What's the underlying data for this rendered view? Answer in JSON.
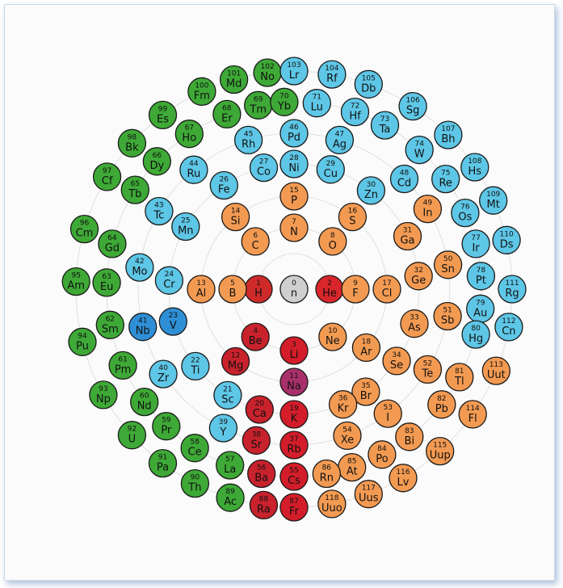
{
  "colors": {
    "neutron": "#cfcfcf",
    "hydrogen": "#cf2a2a",
    "noble_center": "#d8262a",
    "alkali": "#d31d2a",
    "alkaline": "#c8222c",
    "nonmetal_p": "#f39a52",
    "transition": "#5ec6e6",
    "f_block": "#3ea936",
    "sodium": "#a8306a",
    "vanadium_niobium": "#2f8fd6"
  },
  "elements": [
    {
      "num": "0",
      "sym": "n",
      "cat": "neutron",
      "ang": -90,
      "r": 0
    },
    {
      "num": "1",
      "sym": "H",
      "cat": "hydrogen",
      "ang": 180,
      "r": 44
    },
    {
      "num": "2",
      "sym": "He",
      "cat": "noble_center",
      "ang": 0,
      "r": 44
    },
    {
      "num": "3",
      "sym": "Li",
      "cat": "alkali",
      "ang": 90,
      "r": 76
    },
    {
      "num": "4",
      "sym": "Be",
      "cat": "alkaline",
      "ang": 129,
      "r": 76
    },
    {
      "num": "5",
      "sym": "B",
      "cat": "nonmetal_p",
      "ang": 180,
      "r": 76
    },
    {
      "num": "6",
      "sym": "C",
      "cat": "nonmetal_p",
      "ang": -129,
      "r": 76
    },
    {
      "num": "7",
      "sym": "N",
      "cat": "nonmetal_p",
      "ang": -90,
      "r": 76
    },
    {
      "num": "8",
      "sym": "O",
      "cat": "nonmetal_p",
      "ang": -51,
      "r": 76
    },
    {
      "num": "9",
      "sym": "F",
      "cat": "nonmetal_p",
      "ang": 0,
      "r": 76
    },
    {
      "num": "10",
      "sym": "Ne",
      "cat": "nonmetal_p",
      "ang": 51,
      "r": 76
    },
    {
      "num": "11",
      "sym": "Na",
      "cat": "sodium",
      "ang": 90,
      "r": 115
    },
    {
      "num": "12",
      "sym": "Mg",
      "cat": "alkaline",
      "ang": 129,
      "r": 115
    },
    {
      "num": "13",
      "sym": "Al",
      "cat": "nonmetal_p",
      "ang": 180,
      "r": 115
    },
    {
      "num": "14",
      "sym": "Si",
      "cat": "nonmetal_p",
      "ang": -129,
      "r": 115
    },
    {
      "num": "15",
      "sym": "P",
      "cat": "nonmetal_p",
      "ang": -90,
      "r": 115
    },
    {
      "num": "16",
      "sym": "S",
      "cat": "nonmetal_p",
      "ang": -51,
      "r": 115
    },
    {
      "num": "17",
      "sym": "Cl",
      "cat": "nonmetal_p",
      "ang": 0,
      "r": 115
    },
    {
      "num": "18",
      "sym": "Ar",
      "cat": "nonmetal_p",
      "ang": 39,
      "r": 115
    },
    {
      "num": "19",
      "sym": "K",
      "cat": "alkali",
      "ang": 90,
      "r": 155
    },
    {
      "num": "20",
      "sym": "Ca",
      "cat": "alkaline",
      "ang": 106,
      "r": 155
    },
    {
      "num": "21",
      "sym": "Sc",
      "cat": "transition",
      "ang": 122,
      "r": 155
    },
    {
      "num": "22",
      "sym": "Ti",
      "cat": "transition",
      "ang": 142,
      "r": 155
    },
    {
      "num": "23",
      "sym": "V",
      "cat": "vanadium_niobium",
      "ang": 165,
      "r": 155
    },
    {
      "num": "24",
      "sym": "Cr",
      "cat": "transition",
      "ang": -176,
      "r": 155
    },
    {
      "num": "25",
      "sym": "Mn",
      "cat": "transition",
      "ang": -150,
      "r": 155
    },
    {
      "num": "26",
      "sym": "Fe",
      "cat": "transition",
      "ang": -124,
      "r": 155
    },
    {
      "num": "27",
      "sym": "Co",
      "cat": "transition",
      "ang": -104,
      "r": 155
    },
    {
      "num": "28",
      "sym": "Ni",
      "cat": "transition",
      "ang": -90,
      "r": 155
    },
    {
      "num": "29",
      "sym": "Cu",
      "cat": "transition",
      "ang": -73,
      "r": 155
    },
    {
      "num": "30",
      "sym": "Zn",
      "cat": "transition",
      "ang": -52,
      "r": 155
    },
    {
      "num": "31",
      "sym": "Ga",
      "cat": "nonmetal_p",
      "ang": -25,
      "r": 155
    },
    {
      "num": "32",
      "sym": "Ge",
      "cat": "nonmetal_p",
      "ang": -6,
      "r": 155
    },
    {
      "num": "33",
      "sym": "As",
      "cat": "nonmetal_p",
      "ang": 16,
      "r": 155
    },
    {
      "num": "34",
      "sym": "Se",
      "cat": "nonmetal_p",
      "ang": 35,
      "r": 155
    },
    {
      "num": "35",
      "sym": "Br",
      "cat": "nonmetal_p",
      "ang": 55,
      "r": 155
    },
    {
      "num": "36",
      "sym": "Kr",
      "cat": "nonmetal_p",
      "ang": 67,
      "r": 155
    },
    {
      "num": "37",
      "sym": "Rb",
      "cat": "alkali",
      "ang": 90,
      "r": 193
    },
    {
      "num": "38",
      "sym": "Sr",
      "cat": "alkaline",
      "ang": 104,
      "r": 193
    },
    {
      "num": "39",
      "sym": "Y",
      "cat": "transition",
      "ang": 117,
      "r": 193
    },
    {
      "num": "40",
      "sym": "Zr",
      "cat": "transition",
      "ang": 147,
      "r": 193
    },
    {
      "num": "41",
      "sym": "Nb",
      "cat": "vanadium_niobium",
      "ang": 166,
      "r": 193
    },
    {
      "num": "42",
      "sym": "Mo",
      "cat": "transition",
      "ang": -172,
      "r": 193
    },
    {
      "num": "43",
      "sym": "Tc",
      "cat": "transition",
      "ang": -150,
      "r": 193
    },
    {
      "num": "44",
      "sym": "Ru",
      "cat": "transition",
      "ang": -130,
      "r": 193
    },
    {
      "num": "45",
      "sym": "Rh",
      "cat": "transition",
      "ang": -107,
      "r": 193
    },
    {
      "num": "46",
      "sym": "Pd",
      "cat": "transition",
      "ang": -90,
      "r": 193
    },
    {
      "num": "47",
      "sym": "Ag",
      "cat": "transition",
      "ang": -73,
      "r": 193
    },
    {
      "num": "48",
      "sym": "Cd",
      "cat": "transition",
      "ang": -45,
      "r": 193
    },
    {
      "num": "49",
      "sym": "In",
      "cat": "nonmetal_p",
      "ang": -31,
      "r": 193
    },
    {
      "num": "50",
      "sym": "Sn",
      "cat": "nonmetal_p",
      "ang": -9,
      "r": 193
    },
    {
      "num": "51",
      "sym": "Sb",
      "cat": "nonmetal_p",
      "ang": 10,
      "r": 193
    },
    {
      "num": "52",
      "sym": "Te",
      "cat": "nonmetal_p",
      "ang": 31,
      "r": 193
    },
    {
      "num": "53",
      "sym": "I",
      "cat": "nonmetal_p",
      "ang": 53,
      "r": 193
    },
    {
      "num": "54",
      "sym": "Xe",
      "cat": "nonmetal_p",
      "ang": 70,
      "r": 193
    },
    {
      "num": "55",
      "sym": "Cs",
      "cat": "alkali",
      "ang": 90,
      "r": 232
    },
    {
      "num": "56",
      "sym": "Ba",
      "cat": "alkaline",
      "ang": 100,
      "r": 232
    },
    {
      "num": "57",
      "sym": "La",
      "cat": "f_block",
      "ang": 110,
      "r": 232
    },
    {
      "num": "58",
      "sym": "Ce",
      "cat": "f_block",
      "ang": 122,
      "r": 232
    },
    {
      "num": "59",
      "sym": "Pr",
      "cat": "f_block",
      "ang": 133,
      "r": 232
    },
    {
      "num": "60",
      "sym": "Nd",
      "cat": "f_block",
      "ang": 143,
      "r": 232
    },
    {
      "num": "61",
      "sym": "Pm",
      "cat": "f_block",
      "ang": 156,
      "r": 232
    },
    {
      "num": "62",
      "sym": "Sm",
      "cat": "f_block",
      "ang": 169,
      "r": 232
    },
    {
      "num": "63",
      "sym": "Eu",
      "cat": "f_block",
      "ang": -178,
      "r": 232
    },
    {
      "num": "64",
      "sym": "Gd",
      "cat": "f_block",
      "ang": -166,
      "r": 232
    },
    {
      "num": "65",
      "sym": "Tb",
      "cat": "f_block",
      "ang": -148,
      "r": 232
    },
    {
      "num": "66",
      "sym": "Dy",
      "cat": "f_block",
      "ang": -137,
      "r": 232
    },
    {
      "num": "67",
      "sym": "Ho",
      "cat": "f_block",
      "ang": -124,
      "r": 232
    },
    {
      "num": "68",
      "sym": "Er",
      "cat": "f_block",
      "ang": -111,
      "r": 232
    },
    {
      "num": "69",
      "sym": "Tm",
      "cat": "f_block",
      "ang": -101,
      "r": 232
    },
    {
      "num": "70",
      "sym": "Yb",
      "cat": "f_block",
      "ang": -93,
      "r": 232
    },
    {
      "num": "71",
      "sym": "Lu",
      "cat": "transition",
      "ang": -83,
      "r": 232
    },
    {
      "num": "72",
      "sym": "Hf",
      "cat": "transition",
      "ang": -71,
      "r": 232
    },
    {
      "num": "73",
      "sym": "Ta",
      "cat": "transition",
      "ang": -61,
      "r": 232
    },
    {
      "num": "74",
      "sym": "W",
      "cat": "transition",
      "ang": -48,
      "r": 232
    },
    {
      "num": "75",
      "sym": "Re",
      "cat": "transition",
      "ang": -36,
      "r": 232
    },
    {
      "num": "76",
      "sym": "Os",
      "cat": "transition",
      "ang": -24,
      "r": 232
    },
    {
      "num": "77",
      "sym": "Ir",
      "cat": "transition",
      "ang": -14,
      "r": 232
    },
    {
      "num": "78",
      "sym": "Pt",
      "cat": "transition",
      "ang": -4,
      "r": 232
    },
    {
      "num": "79",
      "sym": "Au",
      "cat": "transition",
      "ang": 6,
      "r": 232
    },
    {
      "num": "80",
      "sym": "Hg",
      "cat": "transition",
      "ang": 14,
      "r": 232
    },
    {
      "num": "81",
      "sym": "Tl",
      "cat": "nonmetal_p",
      "ang": 28,
      "r": 232
    },
    {
      "num": "82",
      "sym": "Pb",
      "cat": "nonmetal_p",
      "ang": 38,
      "r": 232
    },
    {
      "num": "83",
      "sym": "Bi",
      "cat": "nonmetal_p",
      "ang": 52,
      "r": 232
    },
    {
      "num": "84",
      "sym": "Po",
      "cat": "nonmetal_p",
      "ang": 62,
      "r": 232
    },
    {
      "num": "85",
      "sym": "At",
      "cat": "nonmetal_p",
      "ang": 72,
      "r": 232
    },
    {
      "num": "86",
      "sym": "Rn",
      "cat": "nonmetal_p",
      "ang": 80,
      "r": 232
    },
    {
      "num": "87",
      "sym": "Fr",
      "cat": "alkali",
      "ang": 90,
      "r": 270
    },
    {
      "num": "88",
      "sym": "Ra",
      "cat": "alkaline",
      "ang": 98,
      "r": 270
    },
    {
      "num": "89",
      "sym": "Ac",
      "cat": "f_block",
      "ang": 107,
      "r": 270
    },
    {
      "num": "90",
      "sym": "Th",
      "cat": "f_block",
      "ang": 117,
      "r": 270
    },
    {
      "num": "91",
      "sym": "Pa",
      "cat": "f_block",
      "ang": 127,
      "r": 270
    },
    {
      "num": "92",
      "sym": "U",
      "cat": "f_block",
      "ang": 138,
      "r": 270
    },
    {
      "num": "93",
      "sym": "Np",
      "cat": "f_block",
      "ang": 151,
      "r": 270
    },
    {
      "num": "94",
      "sym": "Pu",
      "cat": "f_block",
      "ang": 166,
      "r": 270
    },
    {
      "num": "95",
      "sym": "Am",
      "cat": "f_block",
      "ang": -178,
      "r": 270
    },
    {
      "num": "96",
      "sym": "Cm",
      "cat": "f_block",
      "ang": -164,
      "r": 270
    },
    {
      "num": "97",
      "sym": "Cf",
      "cat": "f_block",
      "ang": -149,
      "r": 270
    },
    {
      "num": "98",
      "sym": "Bk",
      "cat": "f_block",
      "ang": -138,
      "r": 270
    },
    {
      "num": "99",
      "sym": "Es",
      "cat": "f_block",
      "ang": -127,
      "r": 270
    },
    {
      "num": "100",
      "sym": "Fm",
      "cat": "f_block",
      "ang": -115,
      "r": 270
    },
    {
      "num": "101",
      "sym": "Md",
      "cat": "f_block",
      "ang": -106,
      "r": 270
    },
    {
      "num": "102",
      "sym": "No",
      "cat": "f_block",
      "ang": -97,
      "r": 270
    },
    {
      "num": "103",
      "sym": "Lr",
      "cat": "transition",
      "ang": -90,
      "r": 270
    },
    {
      "num": "104",
      "sym": "Rf",
      "cat": "transition",
      "ang": -80,
      "r": 270
    },
    {
      "num": "105",
      "sym": "Db",
      "cat": "transition",
      "ang": -70,
      "r": 270
    },
    {
      "num": "106",
      "sym": "Sg",
      "cat": "transition",
      "ang": -57,
      "r": 270
    },
    {
      "num": "107",
      "sym": "Bh",
      "cat": "transition",
      "ang": -45,
      "r": 270
    },
    {
      "num": "108",
      "sym": "Hs",
      "cat": "transition",
      "ang": -34,
      "r": 270
    },
    {
      "num": "109",
      "sym": "Mt",
      "cat": "transition",
      "ang": -24,
      "r": 270
    },
    {
      "num": "110",
      "sym": "Ds",
      "cat": "transition",
      "ang": -13,
      "r": 270
    },
    {
      "num": "111",
      "sym": "Rg",
      "cat": "transition",
      "ang": 0,
      "r": 270
    },
    {
      "num": "112",
      "sym": "Cn",
      "cat": "transition",
      "ang": 10,
      "r": 270
    },
    {
      "num": "113",
      "sym": "Uut",
      "cat": "nonmetal_p",
      "ang": 22,
      "r": 270
    },
    {
      "num": "114",
      "sym": "Fl",
      "cat": "nonmetal_p",
      "ang": 35,
      "r": 270
    },
    {
      "num": "115",
      "sym": "Uup",
      "cat": "nonmetal_p",
      "ang": 48,
      "r": 270
    },
    {
      "num": "116",
      "sym": "Lv",
      "cat": "nonmetal_p",
      "ang": 60,
      "r": 270
    },
    {
      "num": "117",
      "sym": "Uus",
      "cat": "nonmetal_p",
      "ang": 70,
      "r": 270
    },
    {
      "num": "118",
      "sym": "Uuo",
      "cat": "nonmetal_p",
      "ang": 80,
      "r": 270
    }
  ]
}
